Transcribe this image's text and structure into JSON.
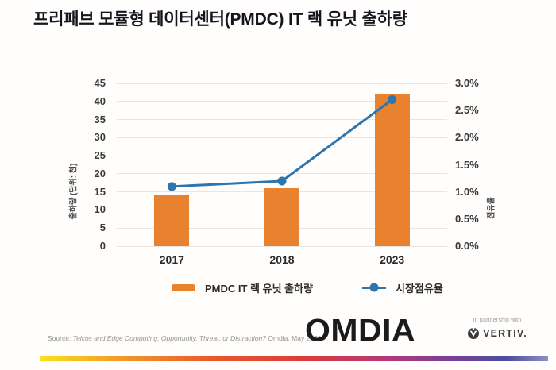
{
  "title": "프리패브 모듈형 데이터센터(PMDC) IT 랙 유닛 출하량",
  "chart_data": {
    "type": "bar+line",
    "categories": [
      "2017",
      "2018",
      "2023"
    ],
    "series": [
      {
        "name": "PMDC IT 랙 유닛 출하량",
        "type": "bar",
        "axis": "left",
        "values": [
          14,
          16,
          42
        ]
      },
      {
        "name": "시장점유율",
        "type": "line",
        "axis": "right",
        "values": [
          1.1,
          1.2,
          2.7
        ]
      }
    ],
    "left_axis": {
      "label": "출하량 (단위: 천)",
      "min": 0,
      "max": 45,
      "step": 5
    },
    "right_axis": {
      "label": "점유율",
      "min": 0,
      "max": 3,
      "step": 0.5,
      "tick_suffix": "%"
    },
    "grid": true,
    "legend_position": "bottom"
  },
  "legend": {
    "bar_label": "PMDC IT 랙 유닛 출하량",
    "line_label": "시장점유율"
  },
  "footer": {
    "source_prefix": "Source:",
    "source_title": "Telcos and Edge Computing: Opportunity, Threat, or Distraction?",
    "source_suffix": "Omdia, May 2020",
    "omdia_logo_text": "OMDIA",
    "partnership_label": "In partnership with",
    "vertiv_logo_text": "VERTIV."
  },
  "colors": {
    "bar": "#E9822F",
    "line": "#2E74AD",
    "grid": "#E8E6E3",
    "title_text": "#15151D",
    "rainbow": [
      "#F9E21B",
      "#F2992B",
      "#E85A2B",
      "#DC3B3B",
      "#B63878",
      "#7C3F96",
      "#4B4F9F",
      "#8B90C4"
    ]
  }
}
